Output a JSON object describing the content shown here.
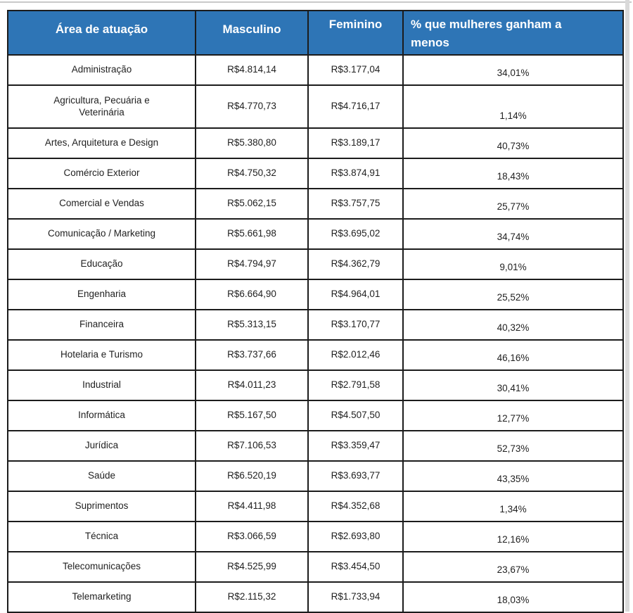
{
  "page": {
    "background": "#ffffff",
    "top_line_color": "#c9c9c9",
    "right_strip_color": "#d9d9d9"
  },
  "table": {
    "header_bg": "#2E75B6",
    "header_text_color": "#ffffff",
    "border_color": "#1c1c1c",
    "body_text_color": "#1f1f1f"
  },
  "chart_data": {
    "type": "table",
    "title": "",
    "columns": [
      "Área de atuação",
      "Masculino",
      "Feminino",
      "% que mulheres ganham a menos"
    ],
    "rows": [
      [
        "Administração",
        "R$4.814,14",
        "R$3.177,04",
        "34,01%"
      ],
      [
        "Agricultura, Pecuária e Veterinária",
        "R$4.770,73",
        "R$4.716,17",
        "1,14%"
      ],
      [
        "Artes, Arquitetura e Design",
        "R$5.380,80",
        "R$3.189,17",
        "40,73%"
      ],
      [
        "Comércio Exterior",
        "R$4.750,32",
        "R$3.874,91",
        "18,43%"
      ],
      [
        "Comercial e Vendas",
        "R$5.062,15",
        "R$3.757,75",
        "25,77%"
      ],
      [
        "Comunicação / Marketing",
        "R$5.661,98",
        "R$3.695,02",
        "34,74%"
      ],
      [
        "Educação",
        "R$4.794,97",
        "R$4.362,79",
        "9,01%"
      ],
      [
        "Engenharia",
        "R$6.664,90",
        "R$4.964,01",
        "25,52%"
      ],
      [
        "Financeira",
        "R$5.313,15",
        "R$3.170,77",
        "40,32%"
      ],
      [
        "Hotelaria e Turismo",
        "R$3.737,66",
        "R$2.012,46",
        "46,16%"
      ],
      [
        "Industrial",
        "R$4.011,23",
        "R$2.791,58",
        "30,41%"
      ],
      [
        "Informática",
        "R$5.167,50",
        "R$4.507,50",
        "12,77%"
      ],
      [
        "Jurídica",
        "R$7.106,53",
        "R$3.359,47",
        "52,73%"
      ],
      [
        "Saúde",
        "R$6.520,19",
        "R$3.693,77",
        "43,35%"
      ],
      [
        "Suprimentos",
        "R$4.411,98",
        "R$4.352,68",
        "1,34%"
      ],
      [
        "Técnica",
        "R$3.066,59",
        "R$2.693,80",
        "12,16%"
      ],
      [
        "Telecomunicações",
        "R$4.525,99",
        "R$3.454,50",
        "23,67%"
      ],
      [
        "Telemarketing",
        "R$2.115,32",
        "R$1.733,94",
        "18,03%"
      ]
    ]
  }
}
